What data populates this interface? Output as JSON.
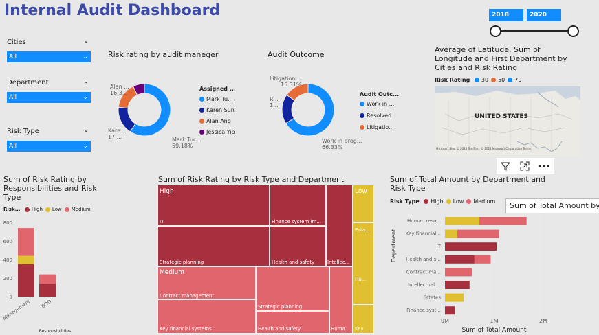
{
  "title": "Internal Audit Dashboard",
  "year_slider": {
    "start": "2018",
    "end": "2020"
  },
  "slicers": [
    {
      "label": "Cities",
      "value": "All"
    },
    {
      "label": "Department",
      "value": "All"
    },
    {
      "label": "Risk Type",
      "value": "All"
    }
  ],
  "donut1": {
    "title": "Risk rating by audit maneger",
    "legend_title": "Assigned ...",
    "labels": [
      {
        "line1": "Alan ...",
        "line2": "16.3..."
      },
      {
        "line1": "Kare...",
        "line2": "17...."
      },
      {
        "line1": "Mark Tuc...",
        "line2": "59.18%"
      }
    ],
    "slices": [
      {
        "name": "Mark Tu...",
        "value": 59.18,
        "color": "#118dff"
      },
      {
        "name": "Karen Sun",
        "value": 17.4,
        "color": "#12239e"
      },
      {
        "name": "Alan Ang",
        "value": 16.3,
        "color": "#e66c37"
      },
      {
        "name": "Jessica Yip",
        "value": 7.12,
        "color": "#6b007b"
      }
    ]
  },
  "donut2": {
    "title": "Audit Outcome",
    "legend_title": "Audit Outc...",
    "labels": [
      {
        "line1": "Litigation...",
        "line2": "15.31%"
      },
      {
        "line1": "R...",
        "line2": "1..."
      },
      {
        "line1": "Work in prog...",
        "line2": "66.33%"
      }
    ],
    "slices": [
      {
        "name": "Work in ...",
        "value": 66.33,
        "color": "#118dff"
      },
      {
        "name": "Resolved",
        "value": 18.36,
        "color": "#12239e"
      },
      {
        "name": "Litigatio...",
        "value": 15.31,
        "color": "#e66c37"
      }
    ]
  },
  "map": {
    "title": "Average of Latitude, Sum of Longitude and First Department by Cities and Risk Rating",
    "legend_title": "Risk Rating",
    "legend": [
      {
        "label": "30",
        "color": "#118dff"
      },
      {
        "label": "50",
        "color": "#e66c37"
      },
      {
        "label": "70",
        "color": "#118dff"
      }
    ],
    "country_label": "UNITED STATES",
    "attribution": "Microsoft Bing  © 2024 TomTom, © 2024 Microsoft Corporation  Terms"
  },
  "visual_header_icons": [
    "filter-icon",
    "focus-mode-icon",
    "more-options-icon"
  ],
  "tooltip": "Sum of Total Amount  by",
  "colors": {
    "high": "#a6303e",
    "low": "#e0c030",
    "medium": "#e0656d"
  },
  "chart_data": [
    {
      "type": "bar",
      "title": "Sum of Risk Rating by Responsibilities and Risk Type",
      "legend_title": "Risk...",
      "xlabel": "Responsibilities",
      "ylabel": "",
      "categories": [
        "Management",
        "BOD"
      ],
      "series": [
        {
          "name": "High",
          "values": [
            350,
            140
          ]
        },
        {
          "name": "Low",
          "values": [
            90,
            0
          ]
        },
        {
          "name": "Medium",
          "values": [
            300,
            100
          ]
        }
      ],
      "ylim": [
        0,
        800
      ],
      "yticks": [
        "0",
        "200",
        "400",
        "600",
        "800"
      ],
      "stacked": true
    },
    {
      "type": "treemap",
      "title": "Sum of Risk Rating by Risk Type and Department",
      "groups": [
        {
          "name": "High",
          "cells": [
            "IT",
            "Finance system im...",
            "Strategic planning",
            "Health and safety",
            "Intellec..."
          ]
        },
        {
          "name": "Medium",
          "cells": [
            "Contract management",
            "Strategic planning",
            "Key financial systems",
            "Health and safety",
            "Huma..."
          ]
        },
        {
          "name": "Low",
          "cells": [
            "Esta...",
            "Hu...",
            "Key ..."
          ]
        }
      ]
    },
    {
      "type": "bar",
      "orientation": "horizontal",
      "title": "Sum of Total Amount by Department and Risk Type",
      "legend_title": "Risk Type",
      "xlabel": "Sum of Total Amount",
      "ylabel": "Department",
      "categories": [
        "Human reso...",
        "Key financial...",
        "IT",
        "Health and s...",
        "Contract ma...",
        "Intellectual ...",
        "Estates",
        "Finance syst..."
      ],
      "series": [
        {
          "name": "High",
          "values": [
            0,
            0,
            1050000,
            600000,
            0,
            500000,
            0,
            200000
          ]
        },
        {
          "name": "Low",
          "values": [
            700000,
            250000,
            0,
            0,
            0,
            0,
            380000,
            0
          ]
        },
        {
          "name": "Medium",
          "values": [
            960000,
            850000,
            0,
            330000,
            550000,
            0,
            0,
            0
          ]
        }
      ],
      "xlim": [
        0,
        2000000
      ],
      "xticks": [
        "0M",
        "1M",
        "2M"
      ],
      "stacked": true
    }
  ]
}
